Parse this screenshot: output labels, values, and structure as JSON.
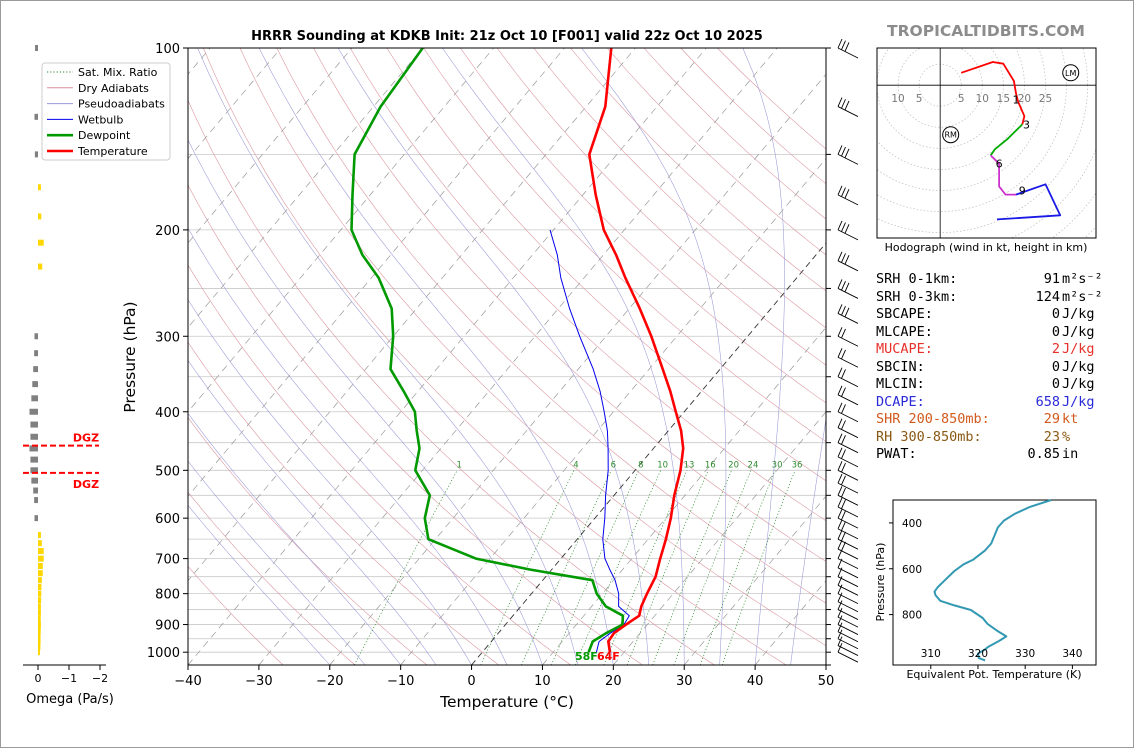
{
  "title": "HRRR Sounding at KDKB Init: 21z Oct 10 [F001] valid 22z Oct 10 2025",
  "brand": "TROPICALTIDBITS.COM",
  "omega_label": "Omega (Pa/s)",
  "omega_ticks": [
    "0",
    "−1",
    "−2"
  ],
  "dgz_label": "DGZ",
  "legend": [
    {
      "label": "Sat. Mix. Ratio",
      "color": "#2e8b2e",
      "style": "dotted"
    },
    {
      "label": "Dry Adiabats",
      "color": "#d9909a",
      "style": "solid"
    },
    {
      "label": "Pseudoadiabats",
      "color": "#9999d8",
      "style": "solid"
    },
    {
      "label": "Wetbulb",
      "color": "#0000ee",
      "style": "solid"
    },
    {
      "label": "Dewpoint",
      "color": "#009900",
      "style": "solid"
    },
    {
      "label": "Temperature",
      "color": "#ff0000",
      "style": "solid"
    }
  ],
  "hodograph": {
    "caption": "Hodograph (wind in kt, height in km)",
    "ring_labels_left": [
      "10",
      "5"
    ],
    "ring_labels_right": [
      "5",
      "10",
      "15",
      "20",
      "25"
    ],
    "markers": [
      "RM",
      "LM"
    ],
    "height_labels": [
      "1",
      "3",
      "6",
      "9"
    ]
  },
  "stats": [
    {
      "label": "SRH 0-1km:",
      "value": "91",
      "unit": "m²s⁻²",
      "color": "#000000"
    },
    {
      "label": "SRH 0-3km:",
      "value": "124",
      "unit": "m²s⁻²",
      "color": "#000000"
    },
    {
      "label": "SBCAPE:",
      "value": "0",
      "unit": "J/kg",
      "color": "#000000"
    },
    {
      "label": "MLCAPE:",
      "value": "0",
      "unit": "J/kg",
      "color": "#000000"
    },
    {
      "label": "MUCAPE:",
      "value": "2",
      "unit": "J/kg",
      "color": "#e8302a"
    },
    {
      "label": "SBCIN:",
      "value": "0",
      "unit": "J/kg",
      "color": "#000000"
    },
    {
      "label": "MLCIN:",
      "value": "0",
      "unit": "J/kg",
      "color": "#000000"
    },
    {
      "label": "DCAPE:",
      "value": "658",
      "unit": "J/kg",
      "color": "#2a2ad8"
    },
    {
      "label": "SHR 200-850mb:",
      "value": "29",
      "unit": "kt",
      "color": "#d25a1e"
    },
    {
      "label": "RH 300-850mb:",
      "value": "23",
      "unit": "%",
      "color": "#8a5a14"
    },
    {
      "label": "PWAT:",
      "value": "0.85",
      "unit": "in",
      "color": "#000000"
    }
  ],
  "colors": {
    "temperature": "#ff0000",
    "dewpoint": "#009900",
    "wetbulb": "#0000ee",
    "theta_e": "#3399b3",
    "hodo_0_3": "#ff0000",
    "hodo_3_6": "#00aa00",
    "hodo_6_9": "#cc33cc",
    "hodo_9_12": "#1a1ae6",
    "omega_neg": "#ffd700",
    "omega_pos": "#808080",
    "dgz": "#ff0000"
  },
  "chart_data": [
    {
      "type": "line",
      "title": "HRRR Sounding at KDKB Init: 21z Oct 10 [F001] valid 22z Oct 10 2025",
      "xlabel": "Temperature (°C)",
      "ylabel": "Pressure (hPa)",
      "xlim": [
        -40,
        50
      ],
      "ylim": [
        1050,
        100
      ],
      "y_scale": "log",
      "x_ticks": [
        -40,
        -30,
        -20,
        -10,
        0,
        10,
        20,
        30,
        40,
        50
      ],
      "y_ticks": [
        100,
        200,
        300,
        400,
        500,
        600,
        700,
        800,
        900,
        1000
      ],
      "skew": "skew-T",
      "mixing_ratio_labels": [
        "1",
        "4",
        "6",
        "8",
        "10",
        "13",
        "16",
        "20",
        "24",
        "30",
        "36"
      ],
      "surface_labels": {
        "dewpoint": "58F",
        "temperature": "64F"
      },
      "series": [
        {
          "name": "Temperature",
          "points": [
            [
              1000,
              18
            ],
            [
              960,
              16.5
            ],
            [
              930,
              16.3
            ],
            [
              900,
              17
            ],
            [
              870,
              17.8
            ],
            [
              840,
              17
            ],
            [
              800,
              16.3
            ],
            [
              750,
              15.5
            ],
            [
              700,
              14
            ],
            [
              650,
              12.5
            ],
            [
              600,
              10.7
            ],
            [
              550,
              8.5
            ],
            [
              500,
              6.4
            ],
            [
              460,
              4.2
            ],
            [
              430,
              1.8
            ],
            [
              400,
              -1.2
            ],
            [
              370,
              -4.4
            ],
            [
              340,
              -8.1
            ],
            [
              300,
              -13.6
            ],
            [
              270,
              -18.5
            ],
            [
              240,
              -24.2
            ],
            [
              220,
              -28.2
            ],
            [
              200,
              -32.9
            ],
            [
              175,
              -38.2
            ],
            [
              150,
              -43.9
            ],
            [
              125,
              -47.3
            ],
            [
              100,
              -53.4
            ]
          ]
        },
        {
          "name": "Dewpoint",
          "points": [
            [
              1000,
              15
            ],
            [
              960,
              14.3
            ],
            [
              930,
              15.2
            ],
            [
              900,
              16.5
            ],
            [
              870,
              15.5
            ],
            [
              840,
              12
            ],
            [
              800,
              9.2
            ],
            [
              760,
              7
            ],
            [
              730,
              -3
            ],
            [
              700,
              -12
            ],
            [
              650,
              -21
            ],
            [
              600,
              -24
            ],
            [
              550,
              -26
            ],
            [
              500,
              -31
            ],
            [
              460,
              -33
            ],
            [
              430,
              -35.5
            ],
            [
              400,
              -38
            ],
            [
              370,
              -42
            ],
            [
              340,
              -46.5
            ],
            [
              300,
              -50
            ],
            [
              270,
              -53.5
            ],
            [
              240,
              -59
            ],
            [
              220,
              -64
            ],
            [
              200,
              -68.5
            ],
            [
              175,
              -72.5
            ],
            [
              150,
              -77
            ],
            [
              125,
              -79
            ],
            [
              100,
              -80
            ]
          ]
        },
        {
          "name": "Wetbulb",
          "points": [
            [
              1000,
              16.1
            ],
            [
              960,
              15.2
            ],
            [
              930,
              15.8
            ],
            [
              900,
              16.7
            ],
            [
              870,
              16.4
            ],
            [
              840,
              13.8
            ],
            [
              800,
              12.3
            ],
            [
              760,
              10.2
            ],
            [
              730,
              8.2
            ],
            [
              700,
              6.2
            ],
            [
              650,
              3.6
            ],
            [
              600,
              1.4
            ],
            [
              550,
              -1.2
            ],
            [
              500,
              -3.8
            ],
            [
              460,
              -6.4
            ],
            [
              430,
              -8.6
            ],
            [
              400,
              -11.3
            ],
            [
              370,
              -14.3
            ],
            [
              340,
              -17.9
            ],
            [
              300,
              -23.7
            ],
            [
              270,
              -28.4
            ],
            [
              240,
              -33.3
            ],
            [
              220,
              -36.5
            ],
            [
              200,
              -40.5
            ]
          ]
        },
        {
          "name": "Omega (Pa/s)",
          "pressures": [
            100,
            130,
            150,
            170,
            190,
            210,
            230,
            300,
            320,
            340,
            360,
            380,
            400,
            420,
            440,
            460,
            480,
            500,
            520,
            540,
            560,
            600,
            640,
            660,
            680,
            700,
            720,
            740,
            760,
            780,
            800,
            820,
            840,
            860,
            880,
            900,
            920,
            940,
            960,
            980,
            1000
          ],
          "values": [
            0.05,
            0.08,
            0.06,
            -0.05,
            -0.07,
            -0.2,
            -0.12,
            0.08,
            0.1,
            0.15,
            0.2,
            0.25,
            0.35,
            0.3,
            0.3,
            0.35,
            0.3,
            0.3,
            0.25,
            0.15,
            0.1,
            0.08,
            -0.05,
            -0.1,
            -0.2,
            -0.2,
            -0.15,
            -0.15,
            -0.1,
            -0.08,
            -0.07,
            -0.06,
            -0.05,
            -0.05,
            -0.04,
            -0.05,
            -0.04,
            -0.03,
            -0.03,
            -0.02,
            0
          ]
        },
        {
          "name": "DGZ",
          "pressures": [
            455,
            505
          ]
        }
      ]
    },
    {
      "type": "line",
      "title": "Hodograph (wind in kt, height in km)",
      "xlim": [
        -15,
        37
      ],
      "ylim": [
        -37,
        9
      ],
      "series": [
        {
          "name": "0-3 km",
          "points": [
            [
              5,
              3
            ],
            [
              12.5,
              5.6
            ],
            [
              15,
              5.2
            ],
            [
              17.5,
              1
            ],
            [
              18,
              -2
            ],
            [
              18.5,
              -4
            ],
            [
              20,
              -7.5
            ],
            [
              19.5,
              -9.5
            ]
          ]
        },
        {
          "name": "3-6 km",
          "points": [
            [
              19.5,
              -9.5
            ],
            [
              16,
              -13
            ],
            [
              13,
              -15.5
            ],
            [
              12,
              -17
            ]
          ]
        },
        {
          "name": "6-9 km",
          "points": [
            [
              12,
              -17
            ],
            [
              14,
              -19
            ],
            [
              14,
              -24.5
            ],
            [
              15.5,
              -26.5
            ],
            [
              18,
              -26.5
            ]
          ]
        },
        {
          "name": "9-12 km",
          "points": [
            [
              18,
              -26.5
            ],
            [
              25,
              -24
            ],
            [
              28.5,
              -31.5
            ],
            [
              13.5,
              -32.5
            ]
          ]
        }
      ],
      "markers": [
        {
          "label": "RM",
          "x": 2.5,
          "y": -12
        },
        {
          "label": "LM",
          "x": 31,
          "y": 3
        }
      ],
      "height_labels": [
        {
          "label": "1",
          "x": 18,
          "y": -3.5
        },
        {
          "label": "3",
          "x": 20.5,
          "y": -9.5
        },
        {
          "label": "6",
          "x": 14,
          "y": -19
        },
        {
          "label": "9",
          "x": 19.5,
          "y": -25.5
        }
      ]
    },
    {
      "type": "line",
      "title": "",
      "xlabel": "Equivalent Pot. Temperature (K)",
      "ylabel": "Pressure (hPa)",
      "xlim": [
        302,
        345
      ],
      "ylim": [
        1020,
        300
      ],
      "x_ticks": [
        310,
        320,
        330,
        340
      ],
      "y_ticks": [
        400,
        600,
        800
      ],
      "series": [
        {
          "name": "Equivalent Pot. Temperature",
          "points": [
            [
              1000,
              321.5
            ],
            [
              990,
              320.2
            ],
            [
              970,
              320
            ],
            [
              955,
              321.3
            ],
            [
              940,
              322.2
            ],
            [
              915,
              324.5
            ],
            [
              895,
              326
            ],
            [
              870,
              324
            ],
            [
              840,
              322
            ],
            [
              815,
              321
            ],
            [
              780,
              318.5
            ],
            [
              760,
              315
            ],
            [
              740,
              312
            ],
            [
              715,
              311
            ],
            [
              700,
              310.8
            ],
            [
              680,
              311.5
            ],
            [
              650,
              313
            ],
            [
              610,
              315
            ],
            [
              580,
              317
            ],
            [
              560,
              319
            ],
            [
              520,
              321.5
            ],
            [
              490,
              322.8
            ],
            [
              450,
              323.6
            ],
            [
              420,
              324.2
            ],
            [
              390,
              325.5
            ],
            [
              360,
              327.8
            ],
            [
              330,
              331
            ],
            [
              300,
              335.5
            ]
          ]
        }
      ]
    }
  ]
}
